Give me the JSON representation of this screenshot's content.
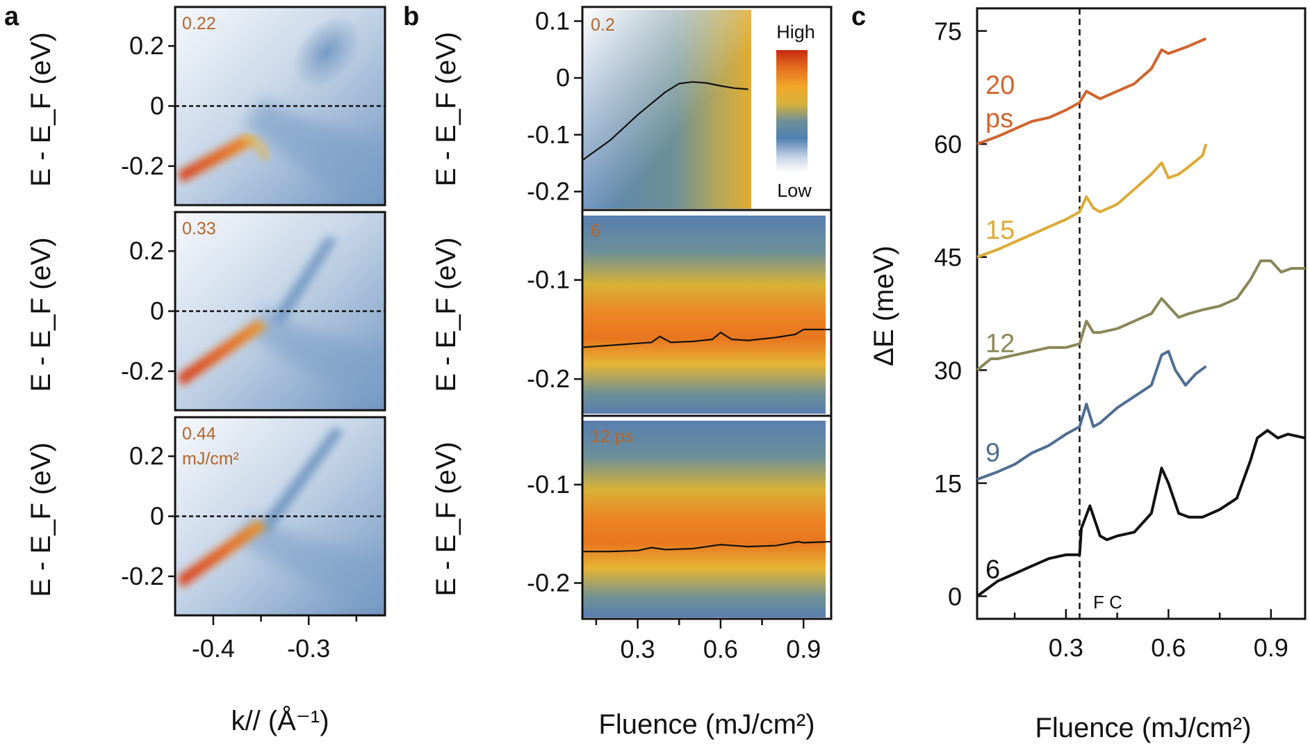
{
  "figure": {
    "panels": [
      "a",
      "b",
      "c"
    ],
    "colorbar": {
      "high_label": "High",
      "low_label": "Low",
      "colors": [
        "#ffffff",
        "#c9d6e7",
        "#4f7fb1",
        "#6e9095",
        "#d7b13a",
        "#f2a72a",
        "#e56f1f",
        "#c62b0f"
      ]
    },
    "dashed_label": "F C"
  },
  "chart_data": [
    {
      "panel": "a",
      "type": "heatmap",
      "subplots": [
        {
          "label_lines": [
            "0.22"
          ]
        },
        {
          "label_lines": [
            "0.33"
          ]
        },
        {
          "label_lines": [
            "0.44",
            "mJ/cm²"
          ]
        }
      ],
      "ylabel": "E - E_F (eV)",
      "ylim": [
        -0.33,
        0.33
      ],
      "yticks": [
        0.2,
        0,
        -0.2
      ],
      "ytick_labels": [
        "0.2",
        "0",
        "-0.2"
      ],
      "xlabel": "k// (Å⁻¹)",
      "xlim": [
        -0.44,
        -0.22
      ],
      "xticks": [
        -0.4,
        -0.3
      ],
      "xtick_labels": [
        "-0.4",
        "-0.3"
      ],
      "fermi_level": 0
    },
    {
      "panel": "b",
      "type": "heatmap",
      "xlabel": "Fluence (mJ/cm²)",
      "xlim": [
        0.1,
        1.0
      ],
      "xticks": [
        0.3,
        0.6,
        0.9
      ],
      "xtick_labels": [
        "0.3",
        "0.6",
        "0.9"
      ],
      "subplots": [
        {
          "label": "0.2",
          "ylabel": "E - E_F (eV)",
          "ylim": [
            -0.23,
            0.12
          ],
          "yticks": [
            0.1,
            0,
            -0.1,
            -0.2
          ],
          "ytick_labels": [
            "0.1",
            "0",
            "-0.1",
            "-0.2"
          ],
          "peak_x": [
            0.1,
            0.2,
            0.3,
            0.4,
            0.45,
            0.5,
            0.55,
            0.6,
            0.65,
            0.7
          ],
          "peak_y": [
            -0.145,
            -0.11,
            -0.065,
            -0.025,
            -0.01,
            -0.007,
            -0.009,
            -0.014,
            -0.018,
            -0.02
          ]
        },
        {
          "label": "6",
          "ylabel": "E - E_F (eV)",
          "ylim": [
            -0.235,
            -0.035
          ],
          "yticks": [
            -0.1,
            -0.2
          ],
          "ytick_labels": [
            "-0.1",
            "-0.2"
          ],
          "peak_x": [
            0.1,
            0.2,
            0.3,
            0.35,
            0.38,
            0.42,
            0.5,
            0.57,
            0.6,
            0.64,
            0.7,
            0.8,
            0.87,
            0.9,
            1.0
          ],
          "peak_y": [
            -0.168,
            -0.166,
            -0.164,
            -0.163,
            -0.157,
            -0.163,
            -0.162,
            -0.16,
            -0.153,
            -0.16,
            -0.161,
            -0.158,
            -0.155,
            -0.15,
            -0.15
          ]
        },
        {
          "label": "12 ps",
          "ylabel": "E - E_F (eV)",
          "ylim": [
            -0.235,
            -0.035
          ],
          "yticks": [
            -0.1,
            -0.2
          ],
          "ytick_labels": [
            "-0.1",
            "-0.2"
          ],
          "peak_x": [
            0.1,
            0.2,
            0.3,
            0.35,
            0.4,
            0.5,
            0.6,
            0.7,
            0.8,
            0.88,
            0.9,
            1.0
          ],
          "peak_y": [
            -0.168,
            -0.168,
            -0.167,
            -0.164,
            -0.166,
            -0.165,
            -0.161,
            -0.163,
            -0.162,
            -0.158,
            -0.159,
            -0.158
          ]
        }
      ]
    },
    {
      "panel": "c",
      "type": "line",
      "xlabel": "Fluence (mJ/cm²)",
      "ylabel": "ΔE (meV)",
      "xlim": [
        0.04,
        1.0
      ],
      "ylim": [
        -3,
        78
      ],
      "xticks": [
        0.3,
        0.6,
        0.9
      ],
      "xtick_labels": [
        "0.3",
        "0.6",
        "0.9"
      ],
      "yticks": [
        0,
        15,
        30,
        45,
        60,
        75
      ],
      "ytick_labels": [
        "0",
        "15",
        "30",
        "45",
        "60",
        "75"
      ],
      "vline_x": 0.34,
      "series": [
        {
          "name": "6",
          "label_lines": [
            "6"
          ],
          "color": "#111111",
          "x": [
            0.04,
            0.1,
            0.15,
            0.2,
            0.25,
            0.3,
            0.34,
            0.345,
            0.37,
            0.4,
            0.42,
            0.45,
            0.5,
            0.55,
            0.58,
            0.6,
            0.63,
            0.66,
            0.7,
            0.75,
            0.8,
            0.84,
            0.86,
            0.89,
            0.92,
            0.95,
            1.0
          ],
          "y": [
            0,
            2,
            3,
            4,
            5,
            5.5,
            5.5,
            9,
            12,
            8,
            7.5,
            8,
            8.5,
            11,
            17,
            15,
            11,
            10.5,
            10.5,
            11.5,
            13,
            18,
            21,
            22,
            21,
            21.5,
            21
          ]
        },
        {
          "name": "9",
          "label_lines": [
            "9"
          ],
          "color": "#4e6e92",
          "x": [
            0.04,
            0.1,
            0.15,
            0.2,
            0.25,
            0.3,
            0.34,
            0.36,
            0.38,
            0.4,
            0.45,
            0.5,
            0.55,
            0.58,
            0.6,
            0.62,
            0.65,
            0.68,
            0.71
          ],
          "y": [
            15.5,
            16.5,
            17.5,
            19,
            20,
            21.5,
            22.5,
            25.5,
            22.5,
            23,
            25,
            26.5,
            28,
            32,
            32.5,
            30,
            28,
            29.5,
            30.5
          ]
        },
        {
          "name": "12",
          "label_lines": [
            "12"
          ],
          "color": "#8b8657",
          "x": [
            0.04,
            0.08,
            0.1,
            0.15,
            0.2,
            0.25,
            0.3,
            0.34,
            0.36,
            0.38,
            0.4,
            0.45,
            0.5,
            0.55,
            0.58,
            0.6,
            0.63,
            0.66,
            0.7,
            0.75,
            0.8,
            0.84,
            0.87,
            0.9,
            0.93,
            0.96,
            1.0
          ],
          "y": [
            30,
            31.5,
            31.5,
            32,
            32.5,
            33,
            33,
            33.5,
            36.5,
            35,
            35,
            35.5,
            36.5,
            37.5,
            39.5,
            38.5,
            37,
            37.5,
            38,
            38.5,
            39.5,
            42,
            44.5,
            44.5,
            43,
            43.5,
            43.5
          ]
        },
        {
          "name": "15",
          "label_lines": [
            "15"
          ],
          "color": "#dcaa35",
          "x": [
            0.04,
            0.1,
            0.15,
            0.2,
            0.25,
            0.3,
            0.34,
            0.36,
            0.38,
            0.4,
            0.45,
            0.5,
            0.55,
            0.58,
            0.6,
            0.63,
            0.66,
            0.7,
            0.71
          ],
          "y": [
            45,
            46,
            47,
            48,
            49,
            50,
            51,
            53,
            51.5,
            51,
            52,
            54,
            56,
            57.5,
            55.5,
            56,
            57,
            58.5,
            60
          ]
        },
        {
          "name": "20",
          "label_lines": [
            "20",
            "ps"
          ],
          "color": "#d0642c",
          "x": [
            0.04,
            0.1,
            0.15,
            0.2,
            0.25,
            0.3,
            0.34,
            0.36,
            0.38,
            0.4,
            0.45,
            0.5,
            0.55,
            0.58,
            0.6,
            0.63,
            0.66,
            0.71
          ],
          "y": [
            60,
            61,
            62,
            63,
            63.5,
            64.5,
            65.5,
            67,
            66.5,
            66,
            67,
            68,
            70,
            72.5,
            72,
            72.5,
            73,
            74
          ]
        }
      ]
    }
  ]
}
